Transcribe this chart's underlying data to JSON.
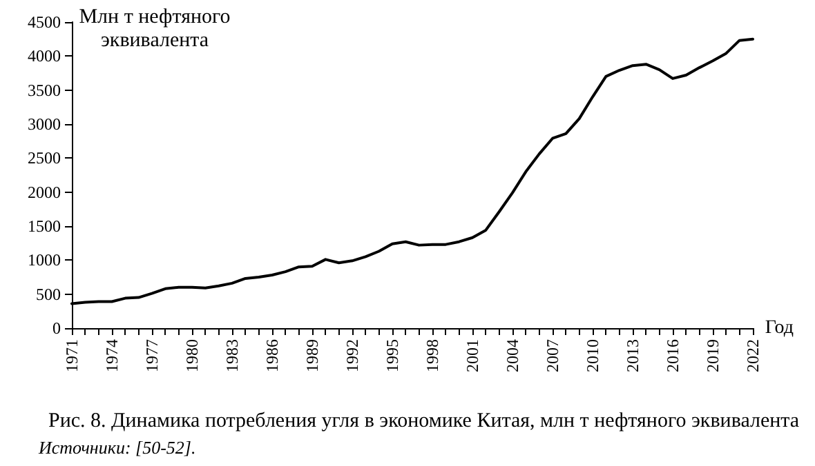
{
  "chart_data": {
    "type": "line",
    "title": "Рис. 8. Динамика потребления угля в экономике Китая, млн т нефтяного эквивалента",
    "ylabel": "Млн т нефтяного эквивалента",
    "xlabel": "Год",
    "annotations": [
      "Источники: [50-52]."
    ],
    "categories": [
      "1971",
      null,
      null,
      "1974",
      null,
      null,
      "1977",
      null,
      null,
      "1980",
      null,
      null,
      "1983",
      null,
      null,
      "1986",
      null,
      null,
      "1989",
      null,
      null,
      "1992",
      null,
      null,
      "1995",
      null,
      null,
      "1998",
      null,
      null,
      "2001",
      null,
      null,
      "2004",
      null,
      null,
      "2007",
      null,
      null,
      "2010",
      null,
      null,
      "2013",
      null,
      null,
      "2016",
      null,
      null,
      "2019",
      null,
      null,
      "2022"
    ],
    "series": [
      {
        "color": "#000000",
        "values": [
          360,
          380,
          390,
          390,
          440,
          450,
          510,
          580,
          600,
          600,
          590,
          620,
          660,
          730,
          750,
          780,
          830,
          900,
          910,
          1010,
          960,
          990,
          1050,
          1130,
          1240,
          1270,
          1220,
          1230,
          1230,
          1270,
          1330,
          1440,
          1710,
          1990,
          2300,
          2560,
          2790,
          2860,
          3080,
          3400,
          3700,
          3790,
          3860,
          3880,
          3800,
          3670,
          3720,
          3830,
          3930,
          4040,
          4230,
          4250
        ]
      }
    ],
    "ylim": [
      0,
      4500
    ],
    "yticks": [
      0,
      500,
      1000,
      1500,
      2000,
      2500,
      3000,
      3500,
      4000,
      4500
    ],
    "grid": false,
    "marker": "none",
    "line_style": "solid"
  }
}
